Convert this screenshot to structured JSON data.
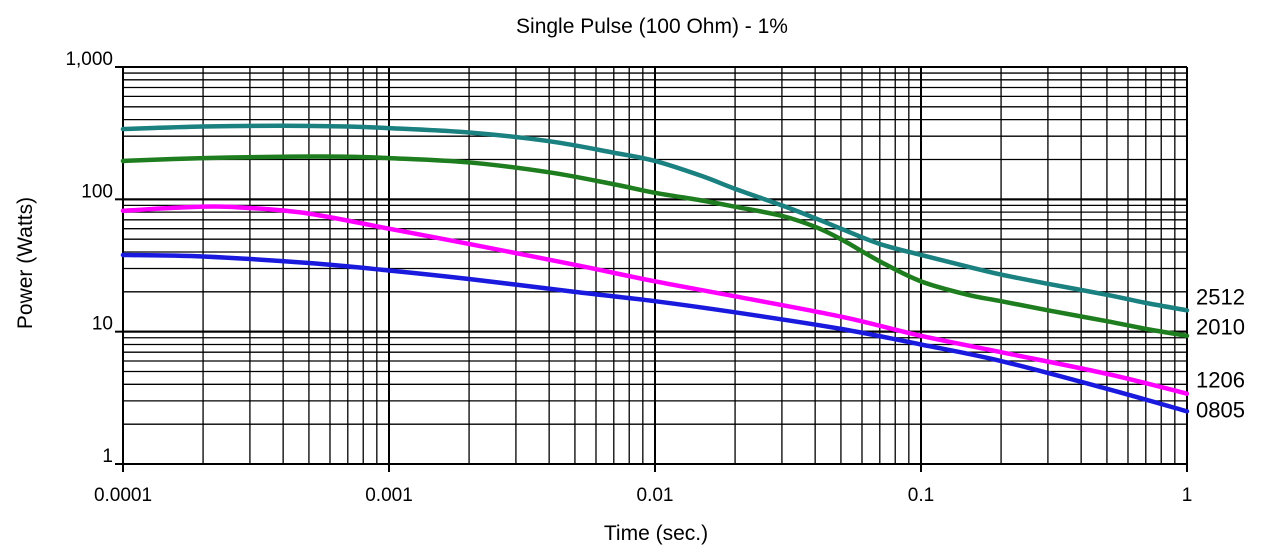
{
  "chart_data": {
    "type": "line",
    "title": "Single Pulse (100 Ohm) - 1%",
    "xlabel": "Time (sec.)",
    "ylabel": "Power (Watts)",
    "x_scale": "log",
    "y_scale": "log",
    "xlim": [
      0.0001,
      1
    ],
    "ylim": [
      1,
      1000
    ],
    "grid": true,
    "legend": "inline-right",
    "x_ticks": [
      {
        "value": 0.0001,
        "label": "0.0001"
      },
      {
        "value": 0.001,
        "label": "0.001"
      },
      {
        "value": 0.01,
        "label": "0.01"
      },
      {
        "value": 0.1,
        "label": "0.1"
      },
      {
        "value": 1,
        "label": "1"
      }
    ],
    "y_ticks": [
      {
        "value": 1,
        "label": "1"
      },
      {
        "value": 10,
        "label": "10"
      },
      {
        "value": 100,
        "label": "100"
      },
      {
        "value": 1000,
        "label": "1,000"
      }
    ],
    "series": [
      {
        "name": "2512",
        "color": "#1a8080",
        "x": [
          0.0001,
          0.0002,
          0.0004,
          0.0007,
          0.001,
          0.002,
          0.004,
          0.007,
          0.01,
          0.015,
          0.02,
          0.03,
          0.04,
          0.05,
          0.07,
          0.1,
          0.15,
          0.2,
          0.3,
          0.5,
          0.7,
          1
        ],
        "y": [
          340,
          355,
          360,
          355,
          345,
          320,
          275,
          225,
          195,
          150,
          120,
          90,
          72,
          60,
          46,
          38,
          31,
          27,
          23,
          19,
          16.5,
          14.5
        ]
      },
      {
        "name": "2010",
        "color": "#1e7d1e",
        "x": [
          0.0001,
          0.0002,
          0.0004,
          0.0007,
          0.001,
          0.002,
          0.004,
          0.007,
          0.01,
          0.015,
          0.02,
          0.03,
          0.04,
          0.05,
          0.07,
          0.1,
          0.15,
          0.2,
          0.3,
          0.5,
          0.7,
          1
        ],
        "y": [
          195,
          205,
          210,
          210,
          205,
          190,
          160,
          130,
          112,
          98,
          88,
          75,
          62,
          50,
          34,
          24,
          19,
          17,
          14.5,
          12,
          10.5,
          9.3
        ]
      },
      {
        "name": "1206",
        "color": "#ff00ff",
        "x": [
          0.0001,
          0.0002,
          0.0003,
          0.0005,
          0.001,
          0.002,
          0.005,
          0.01,
          0.02,
          0.05,
          0.1,
          0.2,
          0.5,
          1
        ],
        "y": [
          82,
          88,
          86,
          78,
          60,
          46,
          32,
          24,
          18.5,
          13,
          9.3,
          7,
          4.8,
          3.4
        ]
      },
      {
        "name": "0805",
        "color": "#1a1adf",
        "x": [
          0.0001,
          0.0002,
          0.0005,
          0.001,
          0.002,
          0.005,
          0.01,
          0.02,
          0.05,
          0.1,
          0.2,
          0.5,
          1
        ],
        "y": [
          38,
          37,
          33,
          29,
          25,
          20,
          17,
          14,
          10.5,
          8,
          6,
          3.7,
          2.5
        ]
      }
    ]
  }
}
